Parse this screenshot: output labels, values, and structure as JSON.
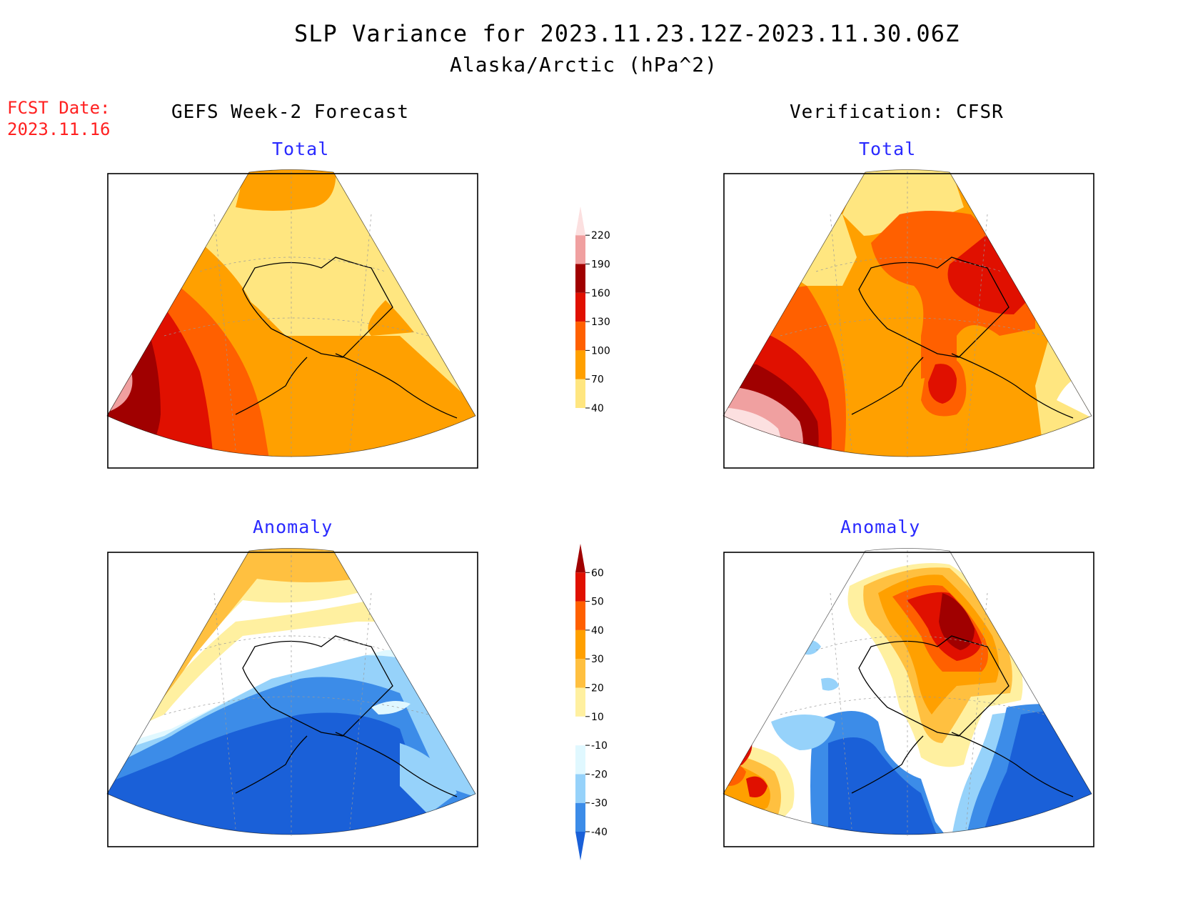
{
  "title": "SLP Variance for 2023.11.23.12Z-2023.11.30.06Z",
  "subtitle": "Alaska/Arctic (hPa^2)",
  "fcst": {
    "label": "FCST Date:",
    "date": "2023.11.16"
  },
  "columns": {
    "left": "GEFS Week-2 Forecast",
    "right": "Verification: CFSR"
  },
  "panels": {
    "top_left": "Total",
    "top_right": "Total",
    "bottom_left": "Anomaly",
    "bottom_right": "Anomaly"
  },
  "colorbars": {
    "total": {
      "levels": [
        "40",
        "70",
        "100",
        "130",
        "160",
        "190",
        "220"
      ],
      "colors": [
        "#ffe680",
        "#ffa000",
        "#ff6000",
        "#e01000",
        "#a00000",
        "#f0a0a0",
        "#fce0e0"
      ]
    },
    "anomaly": {
      "levels": [
        "-40",
        "-30",
        "-20",
        "-10",
        "10",
        "20",
        "30",
        "40",
        "50",
        "60"
      ],
      "colors": [
        "#1a60d8",
        "#3c8ce8",
        "#96d2fa",
        "#e0f8ff",
        "#ffffff",
        "#fff0a0",
        "#ffc040",
        "#ffa000",
        "#ff6000",
        "#e01000",
        "#a00000"
      ]
    }
  }
}
